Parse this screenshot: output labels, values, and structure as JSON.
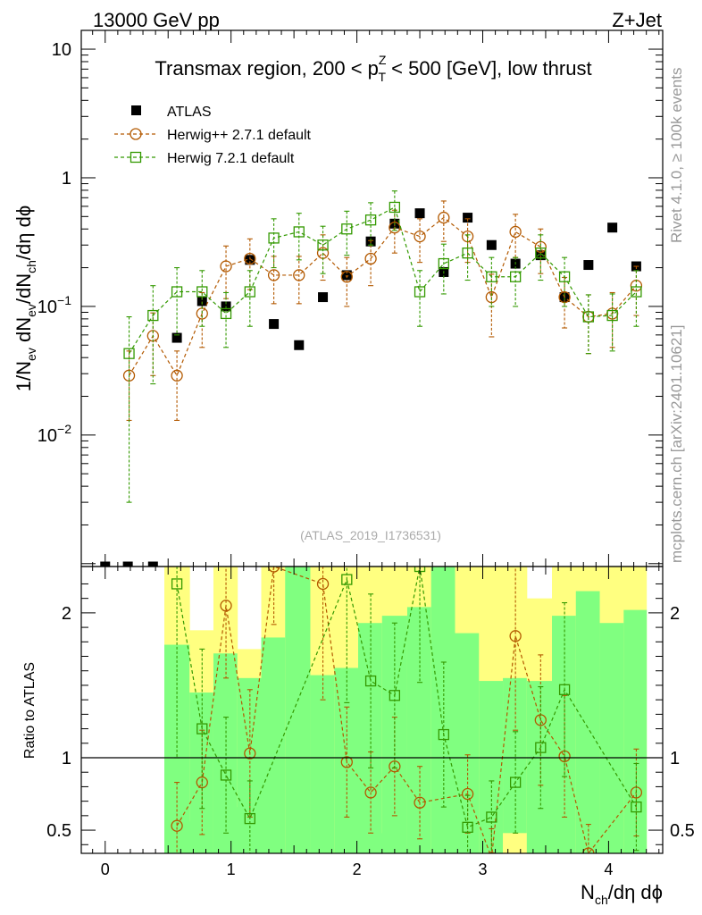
{
  "header": {
    "left": "13000 GeV pp",
    "right": "Z+Jet"
  },
  "side_labels": {
    "rivet": "Rivet 4.1.0, ≥ 100k events",
    "mcplots": "mcplots.cern.ch [arXiv:2401.10621]"
  },
  "chart_data": [
    {
      "type": "scatter",
      "panel": "main",
      "title": "Transmax region, 200 < p_T^Z < 500 [GeV], low thrust",
      "title_parts": {
        "pre": "Transmax region, 200 < p",
        "sup": "Z",
        "sub": "T",
        "post": " < 500 [GeV], low thrust"
      },
      "ylabel": "1/N_ev dN_ev/dN_ch/dη dϕ",
      "ylabel_parts": {
        "a": "1/N",
        "a_sub": "ev",
        "b": " dN",
        "b_sub": "ev",
        "c": "/dN",
        "c_sub": "ch",
        "d": "/dη dϕ"
      },
      "yscale": "log",
      "ylim": [
        0.00095,
        14
      ],
      "xlim": [
        -0.19,
        4.43
      ],
      "x_ticks": [
        "0",
        "1",
        "2",
        "3",
        "4"
      ],
      "x_tick_values": [
        0,
        1,
        2,
        3,
        4
      ],
      "y_ticks": [
        {
          "value": 0.01,
          "base": "10",
          "exp": "−2"
        },
        {
          "value": 0.1,
          "base": "10",
          "exp": "−1"
        },
        {
          "value": 1,
          "base": "1",
          "exp": ""
        },
        {
          "value": 10,
          "base": "10",
          "exp": ""
        }
      ],
      "watermark": "(ATLAS_2019_I1736531)",
      "legend_position": "top-left",
      "series": [
        {
          "name": "ATLAS",
          "color": "#000000",
          "marker": "filled-square",
          "x": [
            0,
            0.18,
            0.38,
            0.57,
            0.77,
            0.96,
            1.15,
            1.34,
            1.54,
            1.73,
            1.92,
            2.11,
            2.3,
            2.5,
            2.69,
            2.88,
            3.07,
            3.26,
            3.46,
            3.65,
            3.84,
            4.03,
            4.22
          ],
          "y": [
            0.00095,
            0.00095,
            0.00095,
            0.057,
            0.11,
            0.1,
            0.23,
            0.073,
            0.05,
            0.118,
            0.175,
            0.32,
            0.44,
            0.53,
            0.185,
            0.49,
            0.3,
            0.215,
            0.25,
            0.118,
            0.21,
            0.41,
            0.205
          ]
        },
        {
          "name": "Herwig++ 2.7.1 default",
          "color": "#b35900",
          "marker": "open-circle",
          "x": [
            0.19,
            0.38,
            0.57,
            0.77,
            0.96,
            1.15,
            1.34,
            1.54,
            1.73,
            1.92,
            2.11,
            2.3,
            2.5,
            2.69,
            2.88,
            3.07,
            3.26,
            3.46,
            3.65,
            3.84,
            4.03,
            4.22
          ],
          "y": [
            0.029,
            0.059,
            0.029,
            0.088,
            0.205,
            0.235,
            0.175,
            0.175,
            0.26,
            0.17,
            0.235,
            0.41,
            0.35,
            0.49,
            0.35,
            0.118,
            0.38,
            0.29,
            0.118,
            0.083,
            0.088,
            0.145
          ],
          "yerr": [
            0.016,
            0.03,
            0.016,
            0.04,
            0.09,
            0.1,
            0.07,
            0.07,
            0.1,
            0.07,
            0.09,
            0.15,
            0.13,
            0.17,
            0.13,
            0.06,
            0.14,
            0.11,
            0.05,
            0.04,
            0.04,
            0.06
          ]
        },
        {
          "name": "Herwig 7.2.1 default",
          "color": "#339900",
          "marker": "open-square",
          "x": [
            0.19,
            0.38,
            0.57,
            0.77,
            0.96,
            1.15,
            1.34,
            1.54,
            1.73,
            1.92,
            2.11,
            2.3,
            2.5,
            2.69,
            2.88,
            3.07,
            3.26,
            3.46,
            3.65,
            3.84,
            4.03,
            4.22
          ],
          "y": [
            0.043,
            0.085,
            0.13,
            0.13,
            0.088,
            0.13,
            0.34,
            0.38,
            0.3,
            0.4,
            0.47,
            0.59,
            0.13,
            0.215,
            0.26,
            0.17,
            0.17,
            0.26,
            0.17,
            0.083,
            0.085,
            0.13
          ],
          "yerr": [
            0.04,
            0.06,
            0.07,
            0.06,
            0.04,
            0.06,
            0.14,
            0.15,
            0.12,
            0.15,
            0.17,
            0.2,
            0.06,
            0.09,
            0.1,
            0.07,
            0.07,
            0.1,
            0.07,
            0.04,
            0.04,
            0.06
          ]
        }
      ]
    },
    {
      "type": "scatter",
      "panel": "ratio",
      "ylabel": "Ratio to ATLAS",
      "xlabel": "N_ch/dη dϕ",
      "xlabel_parts": {
        "a": "N",
        "a_sub": "ch",
        "b": "/dη dϕ"
      },
      "ylim": [
        0.34,
        2.32
      ],
      "xlim": [
        -0.19,
        4.43
      ],
      "y_ticks": [
        "0.5",
        "1",
        "2"
      ],
      "y_tick_values": [
        0.5,
        1,
        2
      ],
      "reference_line": 1,
      "bands": {
        "edges": [
          0.47,
          0.67,
          0.86,
          1.05,
          1.24,
          1.43,
          1.63,
          1.82,
          2.01,
          2.2,
          2.4,
          2.59,
          2.78,
          2.97,
          3.16,
          3.35,
          3.55,
          3.74,
          3.93,
          4.12,
          4.3
        ],
        "yellow_lo": [
          0.34,
          0.56,
          0.34,
          0.66,
          0.34,
          0.34,
          0.34,
          0.34,
          0.55,
          0.48,
          0.34,
          0.34,
          0.34,
          0.34,
          0.34,
          0.34,
          0.34,
          0.34,
          0.34,
          0.34
        ],
        "yellow_hi": [
          2.32,
          1.88,
          2.32,
          1.75,
          2.32,
          2.32,
          2.32,
          2.32,
          2.32,
          2.32,
          2.32,
          2.15,
          2.32,
          2.32,
          2.32,
          2.1,
          2.32,
          2.32,
          2.32,
          2.32
        ],
        "green_lo": [
          0.34,
          0.34,
          0.34,
          0.34,
          0.34,
          0.34,
          0.34,
          0.34,
          0.34,
          0.34,
          0.34,
          0.34,
          0.34,
          0.34,
          0.48,
          0.34,
          0.34,
          0.34,
          0.34,
          0.34
        ],
        "green_hi": [
          1.78,
          1.45,
          1.72,
          1.55,
          1.83,
          2.32,
          1.57,
          1.62,
          1.93,
          1.98,
          2.04,
          2.32,
          1.86,
          1.53,
          1.55,
          1.53,
          1.98,
          2.15,
          1.93,
          2.02
        ],
        "yellow_color": "#ffff80",
        "green_color": "#80ff80"
      },
      "series": [
        {
          "name": "Herwig++ 2.7.1 default",
          "color": "#b35900",
          "x": [
            0.57,
            0.77,
            0.96,
            1.15,
            1.34,
            1.73,
            1.92,
            2.11,
            2.3,
            2.5,
            2.88,
            3.07,
            3.26,
            3.46,
            3.65,
            3.84,
            4.22
          ],
          "y": [
            0.53,
            0.83,
            2.05,
            1.03,
            2.32,
            2.2,
            0.97,
            0.76,
            0.94,
            0.69,
            0.75,
            0.31,
            1.84,
            1.26,
            1.01,
            0.34,
            0.76
          ],
          "yerr": [
            0.3,
            0.36,
            0.5,
            0.44,
            0.4,
            0.8,
            0.38,
            0.28,
            0.34,
            0.25,
            0.27,
            0.2,
            0.65,
            0.45,
            0.42,
            0.2,
            0.3
          ]
        },
        {
          "name": "Herwig 7.2.1 default",
          "color": "#339900",
          "x": [
            0.57,
            0.77,
            0.96,
            1.15,
            1.92,
            2.11,
            2.3,
            2.5,
            2.69,
            2.88,
            3.07,
            3.26,
            3.46,
            3.65,
            4.22
          ],
          "y": [
            2.2,
            1.2,
            0.88,
            0.58,
            2.23,
            1.53,
            1.43,
            2.32,
            1.16,
            0.52,
            0.59,
            0.83,
            1.07,
            1.47,
            0.66
          ],
          "yerr": [
            1.2,
            0.55,
            0.4,
            0.26,
            0.85,
            0.6,
            0.5,
            0.8,
            0.5,
            0.22,
            0.25,
            0.35,
            0.42,
            0.6,
            0.3
          ]
        }
      ]
    }
  ]
}
